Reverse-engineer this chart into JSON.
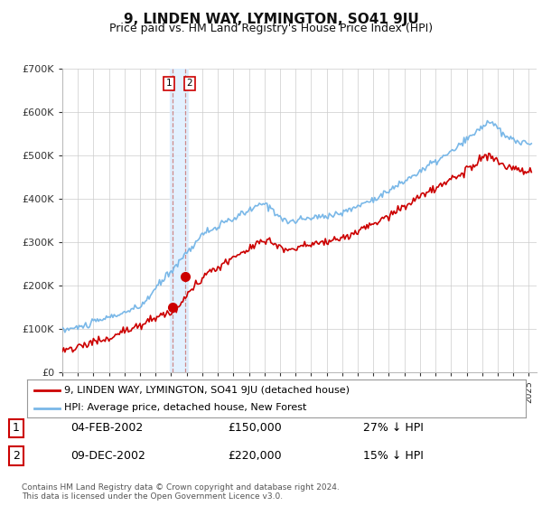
{
  "title": "9, LINDEN WAY, LYMINGTON, SO41 9JU",
  "subtitle": "Price paid vs. HM Land Registry's House Price Index (HPI)",
  "title_fontsize": 11,
  "subtitle_fontsize": 9,
  "hpi_color": "#7ab8e8",
  "price_color": "#cc0000",
  "marker_color": "#cc0000",
  "dashed_line_color": "#cc8888",
  "shade_color": "#ddeeff",
  "ylim": [
    0,
    700000
  ],
  "yticks": [
    0,
    100000,
    200000,
    300000,
    400000,
    500000,
    600000,
    700000
  ],
  "ytick_labels": [
    "£0",
    "£100K",
    "£200K",
    "£300K",
    "£400K",
    "£500K",
    "£600K",
    "£700K"
  ],
  "legend_label_red": "9, LINDEN WAY, LYMINGTON, SO41 9JU (detached house)",
  "legend_label_blue": "HPI: Average price, detached house, New Forest",
  "transaction1_date": "04-FEB-2002",
  "transaction1_price": "£150,000",
  "transaction1_hpi": "27% ↓ HPI",
  "transaction1_year": 2002.09,
  "transaction1_value": 150000,
  "transaction2_date": "09-DEC-2002",
  "transaction2_price": "£220,000",
  "transaction2_hpi": "15% ↓ HPI",
  "transaction2_year": 2002.92,
  "transaction2_value": 220000,
  "footnote": "Contains HM Land Registry data © Crown copyright and database right 2024.\nThis data is licensed under the Open Government Licence v3.0.",
  "background_color": "#ffffff",
  "grid_color": "#cccccc"
}
